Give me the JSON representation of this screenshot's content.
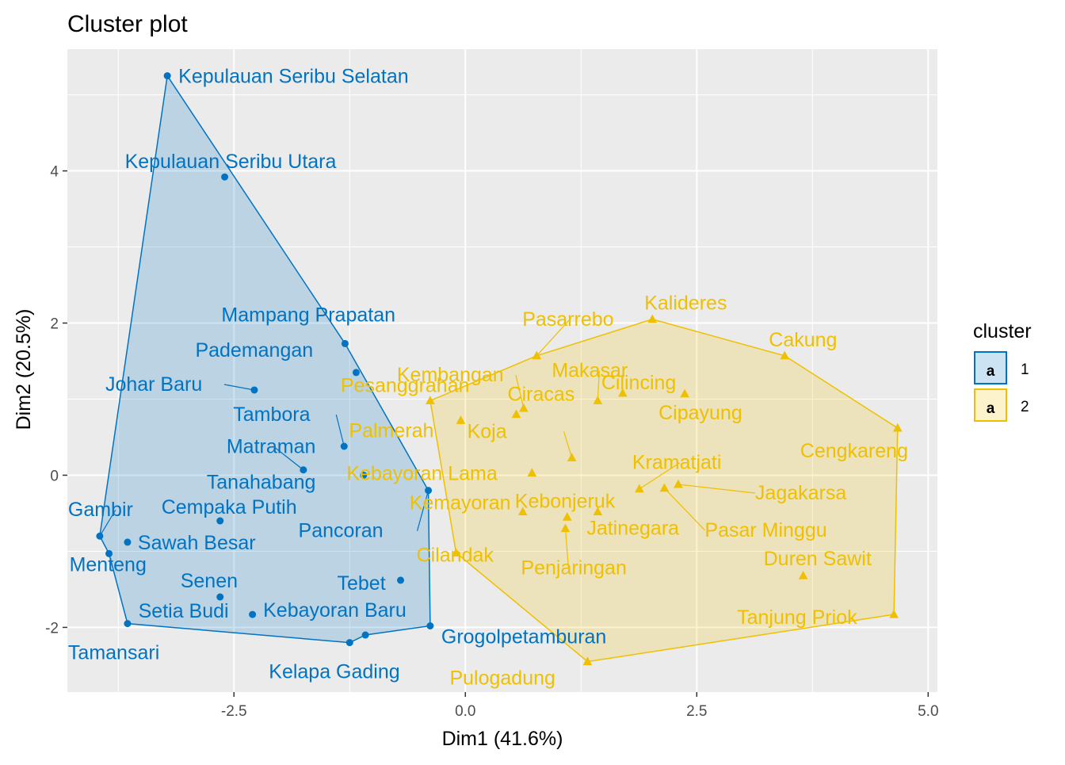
{
  "chart_data": {
    "type": "scatter",
    "title": "Cluster plot",
    "xlabel": "Dim1 (41.6%)",
    "ylabel": "Dim2 (20.5%)",
    "xlim": [
      -4.3,
      5.1
    ],
    "ylim": [
      -2.85,
      5.6
    ],
    "x_ticks": [
      -2.5,
      0.0,
      2.5,
      5.0
    ],
    "x_tick_labels": [
      "-2.5",
      "0.0",
      "2.5",
      "5.0"
    ],
    "y_ticks": [
      -2,
      0,
      2,
      4
    ],
    "y_tick_labels": [
      "-2",
      "0",
      "2",
      "4"
    ],
    "grid": true,
    "legend": {
      "title": "cluster",
      "position": "right",
      "entries": [
        {
          "key": "1",
          "label": "1",
          "glyph": "a"
        },
        {
          "key": "2",
          "label": "2",
          "glyph": "a"
        }
      ]
    },
    "colors": {
      "1": "#0073C2",
      "2": "#EFC000",
      "panel_background": "#EBEBEB",
      "grid": "#FFFFFF"
    },
    "series": [
      {
        "name": "1",
        "marker": "circle",
        "points": [
          {
            "label": "Kepulauan Seribu Selatan",
            "x": -3.22,
            "y": 5.25
          },
          {
            "label": "Kepulauan Seribu Utara",
            "x": -2.6,
            "y": 3.92
          },
          {
            "label": "Mampang Prapatan",
            "x": -1.3,
            "y": 1.73
          },
          {
            "label": "Pademangan",
            "x": -1.18,
            "y": 1.35
          },
          {
            "label": "Johar Baru",
            "x": -2.28,
            "y": 1.12
          },
          {
            "label": "Tambora",
            "x": -1.31,
            "y": 0.38
          },
          {
            "label": "Matraman",
            "x": -1.75,
            "y": 0.07
          },
          {
            "label": "Tanahabang",
            "x": -1.1,
            "y": 0.0
          },
          {
            "label": "Pancoran",
            "x": -0.4,
            "y": -0.2
          },
          {
            "label": "Cempaka Putih",
            "x": -2.65,
            "y": -0.6
          },
          {
            "label": "Gambir",
            "x": -3.95,
            "y": -0.8
          },
          {
            "label": "Sawah Besar",
            "x": -3.65,
            "y": -0.88
          },
          {
            "label": "Menteng",
            "x": -3.85,
            "y": -1.03
          },
          {
            "label": "Tebet",
            "x": -0.7,
            "y": -1.38
          },
          {
            "label": "Senen",
            "x": -2.65,
            "y": -1.6
          },
          {
            "label": "Setia Budi",
            "x": -2.3,
            "y": -1.83
          },
          {
            "label": "Tamansari",
            "x": -3.65,
            "y": -1.95
          },
          {
            "label": "Kebayoran Baru",
            "x": -1.08,
            "y": -2.1
          },
          {
            "label": "Kelapa Gading",
            "x": -1.25,
            "y": -2.2
          },
          {
            "label": "Grogolpetamburan",
            "x": -0.38,
            "y": -1.98
          }
        ]
      },
      {
        "name": "2",
        "marker": "triangle",
        "points": [
          {
            "label": "Kalideres",
            "x": 2.02,
            "y": 2.05
          },
          {
            "label": "Pasarrebo",
            "x": 0.77,
            "y": 1.57
          },
          {
            "label": "Cakung",
            "x": 3.45,
            "y": 1.57
          },
          {
            "label": "Kembangan",
            "x": 0.63,
            "y": 0.88
          },
          {
            "label": "Ciracas",
            "x": 0.55,
            "y": 0.8
          },
          {
            "label": "Cilincing",
            "x": 1.7,
            "y": 1.08
          },
          {
            "label": "Pesanggrahan",
            "x": -0.38,
            "y": 0.98
          },
          {
            "label": "Makasar",
            "x": 1.43,
            "y": 0.98
          },
          {
            "label": "Cipayung",
            "x": 2.37,
            "y": 1.07
          },
          {
            "label": "Palmerah",
            "x": -0.05,
            "y": 0.72
          },
          {
            "label": "Koja",
            "x": 1.15,
            "y": 0.23
          },
          {
            "label": "Cengkareng",
            "x": 4.67,
            "y": 0.62
          },
          {
            "label": "Kebayoran Lama",
            "x": 0.72,
            "y": 0.03
          },
          {
            "label": "Kramatjati",
            "x": 1.88,
            "y": -0.18
          },
          {
            "label": "Jagakarsa",
            "x": 2.3,
            "y": -0.12
          },
          {
            "label": "Pasar Minggu",
            "x": 2.15,
            "y": -0.17
          },
          {
            "label": "Kemayoran",
            "x": 0.62,
            "y": -0.48
          },
          {
            "label": "Kebonjeruk",
            "x": 1.1,
            "y": -0.55
          },
          {
            "label": "Jatinegara",
            "x": 1.43,
            "y": -0.48
          },
          {
            "label": "Penjaringan",
            "x": 1.08,
            "y": -0.7
          },
          {
            "label": "Cilandak",
            "x": -0.1,
            "y": -1.02
          },
          {
            "label": "Duren Sawit",
            "x": 3.65,
            "y": -1.32
          },
          {
            "label": "Tanjung Priok",
            "x": 4.63,
            "y": -1.83
          },
          {
            "label": "Pulogadung",
            "x": 1.32,
            "y": -2.45
          }
        ]
      }
    ],
    "hulls": {
      "1": [
        "Kepulauan Seribu Selatan",
        "Mampang Prapatan",
        "Pancoran",
        "Grogolpetamburan",
        "Kebayoran Baru",
        "Kelapa Gading",
        "Tamansari",
        "Menteng",
        "Gambir"
      ],
      "2": [
        "Kalideres",
        "Cakung",
        "Cengkareng",
        "Tanjung Priok",
        "Pulogadung",
        "Cilandak",
        "Pesanggrahan",
        "Pasarrebo"
      ]
    }
  }
}
